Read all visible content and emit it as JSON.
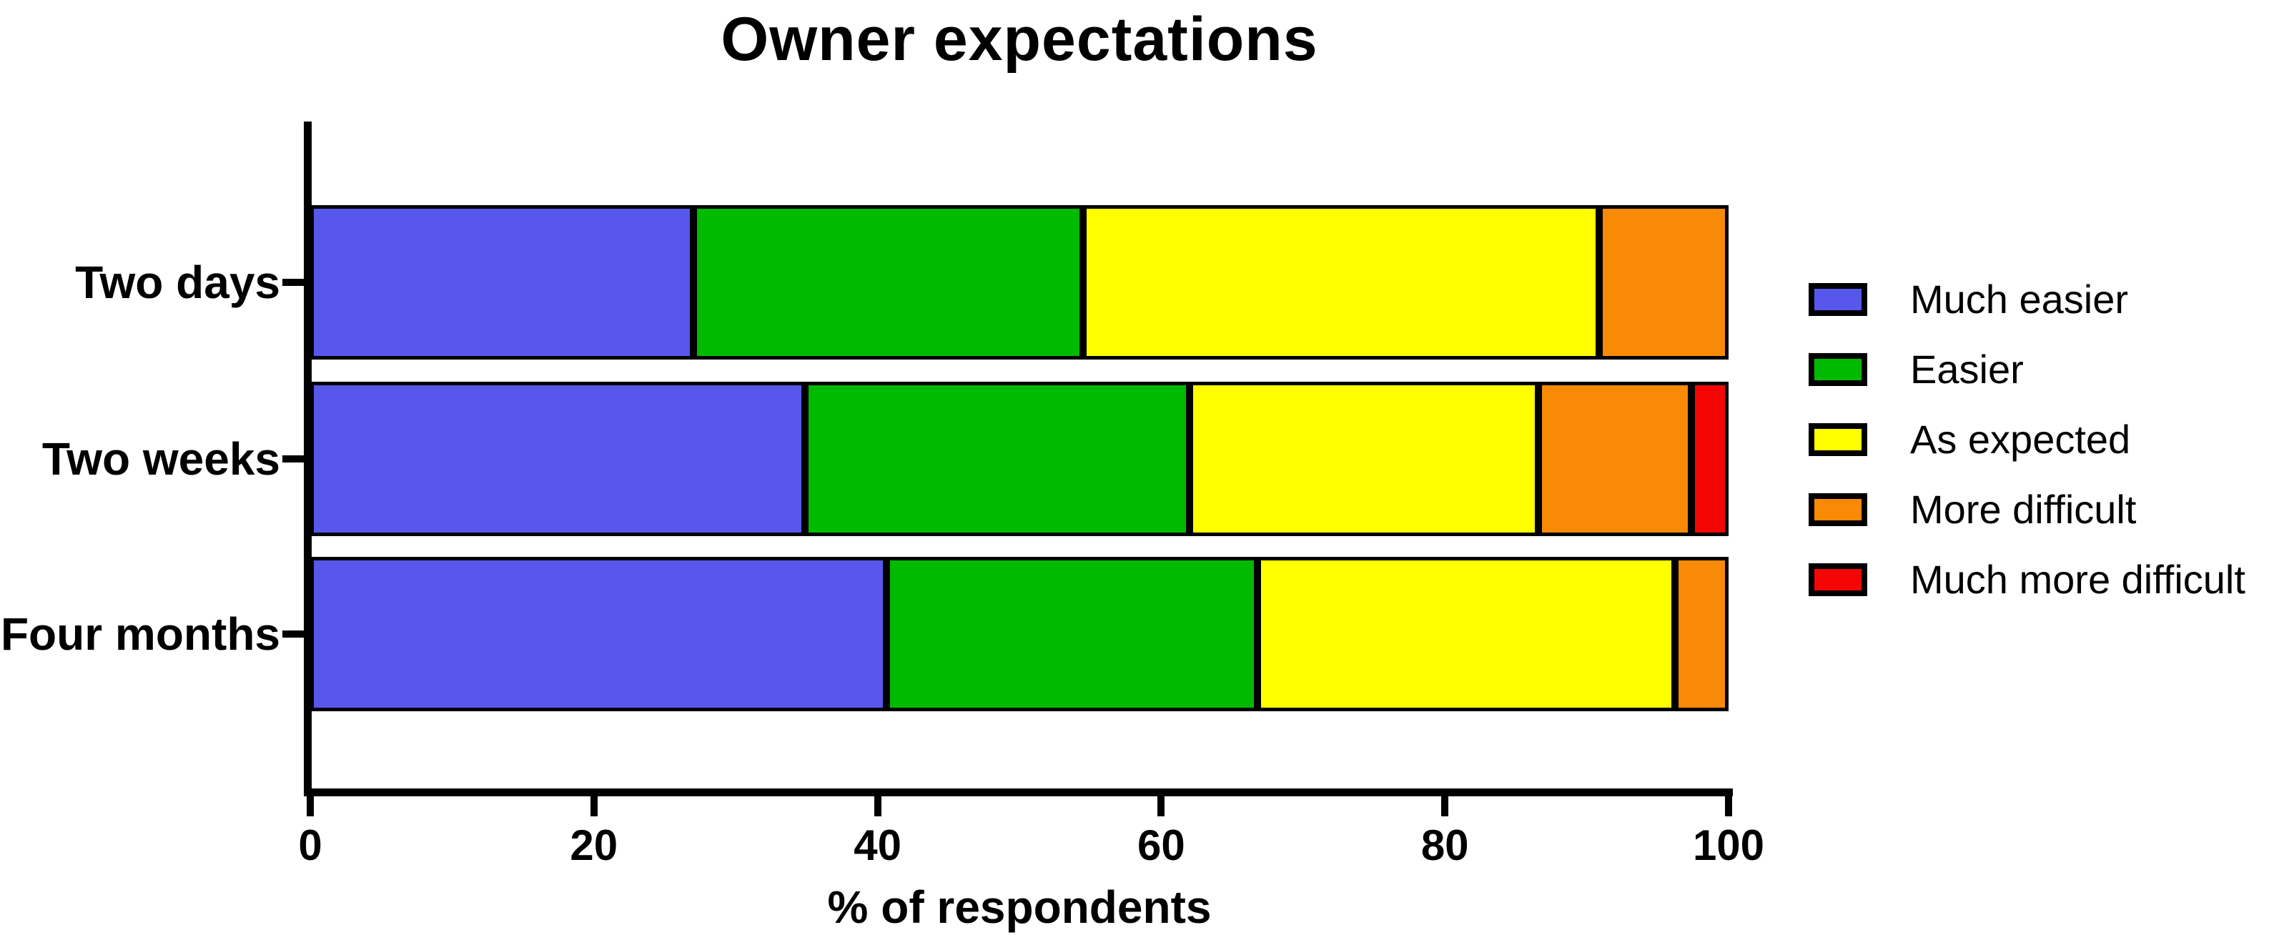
{
  "figure": {
    "title": "Owner expectations",
    "xlabel": "% of respondents"
  },
  "chart_data": {
    "type": "bar",
    "variant": "horizontal-stacked",
    "title": "Owner expectations",
    "xlabel": "% of respondents",
    "ylabel": "",
    "xlim": [
      0,
      100
    ],
    "xticks": [
      0,
      20,
      40,
      60,
      80,
      100
    ],
    "grid": false,
    "legend_position": "right",
    "categories": [
      "Two days",
      "Two weeks",
      "Four months"
    ],
    "series": [
      {
        "name": "Much easier",
        "color": "#5757EC",
        "values": [
          27.0,
          34.9,
          40.6
        ]
      },
      {
        "name": "Easier",
        "color": "#00BA00",
        "values": [
          27.5,
          27.1,
          26.2
        ]
      },
      {
        "name": "As expected",
        "color": "#FFFF00",
        "values": [
          36.4,
          24.6,
          29.4
        ]
      },
      {
        "name": "More difficult",
        "color": "#F98A05",
        "values": [
          9.1,
          10.8,
          3.8
        ]
      },
      {
        "name": "Much more difficult",
        "color": "#F60505",
        "values": [
          0.0,
          2.6,
          0.0
        ]
      }
    ]
  }
}
